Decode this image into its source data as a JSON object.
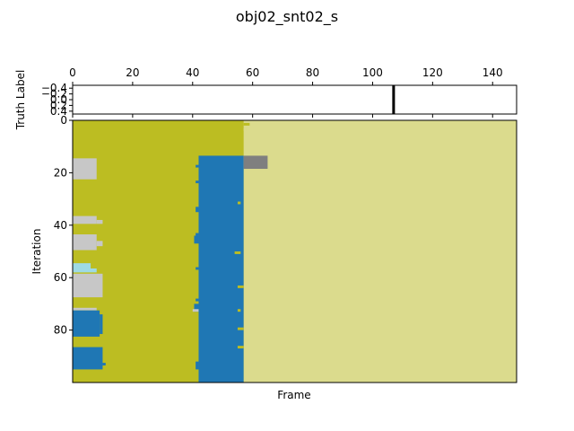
{
  "chart_data": [
    {
      "type": "heatmap",
      "title": "obj02_snt02_s",
      "xlabel": "",
      "ylabel": "Truth Label",
      "x_ticks": [
        "0",
        "20",
        "40",
        "60",
        "80",
        "100",
        "120",
        "140"
      ],
      "y_ticks": [
        "−0.4",
        "−0.2",
        "0.0",
        "0.2",
        "0.4"
      ],
      "xlim": [
        0,
        148
      ],
      "ylim": [
        -0.5,
        0.5
      ],
      "x_axis_position": "top",
      "background": "#ffffff",
      "marks": [
        {
          "label": "truth marker",
          "frame": 107,
          "color": "#000000"
        }
      ]
    },
    {
      "type": "heatmap",
      "xlabel": "Frame",
      "ylabel": "Iteration",
      "x_ticks": [],
      "y_ticks": [
        "0",
        "20",
        "40",
        "60",
        "80"
      ],
      "xlim": [
        0,
        148
      ],
      "ylim": [
        0,
        100
      ],
      "y_inverted": true,
      "colors": {
        "olive": "#bcbd22",
        "khaki": "#dbdb8d",
        "blue": "#1f77b4",
        "gray": "#7f7f7f",
        "lightgray": "#c7c7c7",
        "cyan": "#9edae5"
      },
      "regions": [
        {
          "x": [
            0,
            148
          ],
          "y": [
            0,
            100
          ],
          "color": "khaki"
        },
        {
          "x": [
            0,
            57
          ],
          "y": [
            0,
            100
          ],
          "color": "olive"
        },
        {
          "x": [
            42,
            57
          ],
          "y": [
            13.5,
            100
          ],
          "color": "blue"
        },
        {
          "x": [
            57,
            65
          ],
          "y": [
            13.5,
            18.5
          ],
          "color": "gray"
        },
        {
          "x": [
            0,
            8
          ],
          "y": [
            14.5,
            22.5
          ],
          "color": "lightgray"
        },
        {
          "x": [
            0,
            8
          ],
          "y": [
            36.5,
            39.5
          ],
          "color": "lightgray"
        },
        {
          "x": [
            8,
            10
          ],
          "y": [
            38,
            39.5
          ],
          "color": "lightgray"
        },
        {
          "x": [
            0,
            8
          ],
          "y": [
            43.5,
            49.5
          ],
          "color": "lightgray"
        },
        {
          "x": [
            8,
            10
          ],
          "y": [
            46,
            48
          ],
          "color": "lightgray"
        },
        {
          "x": [
            0,
            6
          ],
          "y": [
            54.5,
            56.5
          ],
          "color": "cyan"
        },
        {
          "x": [
            0,
            8
          ],
          "y": [
            56.5,
            58
          ],
          "color": "cyan"
        },
        {
          "x": [
            0,
            10
          ],
          "y": [
            58.5,
            67.5
          ],
          "color": "lightgray"
        },
        {
          "x": [
            0,
            8
          ],
          "y": [
            71.5,
            72.5
          ],
          "color": "lightgray"
        },
        {
          "x": [
            0,
            9
          ],
          "y": [
            72.5,
            82.5
          ],
          "color": "blue"
        },
        {
          "x": [
            9,
            10
          ],
          "y": [
            74,
            81.5
          ],
          "color": "blue"
        },
        {
          "x": [
            0,
            10
          ],
          "y": [
            86.5,
            95
          ],
          "color": "blue"
        },
        {
          "x": [
            10,
            11
          ],
          "y": [
            92.5,
            93.5
          ],
          "color": "blue"
        },
        {
          "x": [
            41,
            42
          ],
          "y": [
            17,
            18
          ],
          "color": "blue"
        },
        {
          "x": [
            41,
            42
          ],
          "y": [
            23,
            24
          ],
          "color": "blue"
        },
        {
          "x": [
            41,
            42
          ],
          "y": [
            33,
            35
          ],
          "color": "blue"
        },
        {
          "x": [
            41,
            42
          ],
          "y": [
            43,
            44
          ],
          "color": "blue"
        },
        {
          "x": [
            40.5,
            42
          ],
          "y": [
            44,
            47
          ],
          "color": "blue"
        },
        {
          "x": [
            41,
            42
          ],
          "y": [
            56,
            57
          ],
          "color": "blue"
        },
        {
          "x": [
            41,
            42
          ],
          "y": [
            68,
            69
          ],
          "color": "blue"
        },
        {
          "x": [
            40.5,
            42
          ],
          "y": [
            70,
            73
          ],
          "color": "blue"
        },
        {
          "x": [
            41,
            42
          ],
          "y": [
            92,
            95
          ],
          "color": "blue"
        },
        {
          "x": [
            55,
            56
          ],
          "y": [
            31,
            32
          ],
          "color": "olive"
        },
        {
          "x": [
            54,
            56
          ],
          "y": [
            50,
            51
          ],
          "color": "olive"
        },
        {
          "x": [
            55,
            57
          ],
          "y": [
            63,
            64
          ],
          "color": "olive"
        },
        {
          "x": [
            55,
            56
          ],
          "y": [
            72,
            73
          ],
          "color": "olive"
        },
        {
          "x": [
            55,
            57
          ],
          "y": [
            79,
            80
          ],
          "color": "olive"
        },
        {
          "x": [
            55,
            57
          ],
          "y": [
            86,
            87
          ],
          "color": "olive"
        },
        {
          "x": [
            40,
            42
          ],
          "y": [
            72,
            73
          ],
          "color": "lightgray"
        },
        {
          "x": [
            57,
            59
          ],
          "y": [
            1,
            2
          ],
          "color": "olive"
        },
        {
          "x": [
            57,
            58
          ],
          "y": [
            3,
            4
          ],
          "color": "khaki"
        }
      ]
    }
  ]
}
